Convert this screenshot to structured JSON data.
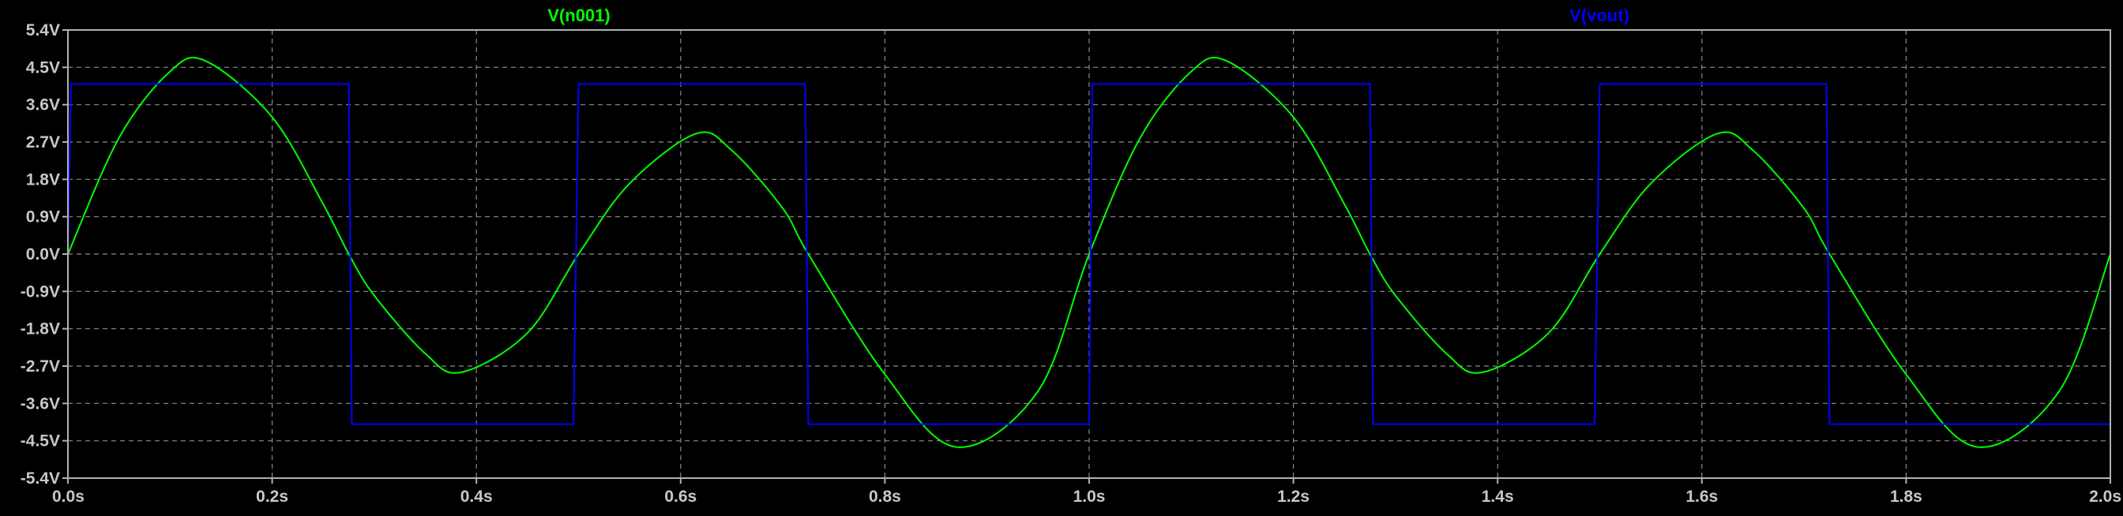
{
  "chart_data": {
    "type": "line",
    "x_unit": "s",
    "y_unit": "V",
    "xlim": [
      0,
      2
    ],
    "ylim": [
      -5.4,
      5.4
    ],
    "x_ticks": [
      0.0,
      0.2,
      0.4,
      0.6,
      0.8,
      1.0,
      1.2,
      1.4,
      1.6,
      1.8,
      2.0
    ],
    "y_ticks": [
      5.4,
      4.5,
      3.6,
      2.7,
      1.8,
      0.9,
      0.0,
      -0.9,
      -1.8,
      -2.7,
      -3.6,
      -4.5,
      -5.4
    ],
    "x_tick_labels": [
      "0.0s",
      "0.2s",
      "0.4s",
      "0.6s",
      "0.8s",
      "1.0s",
      "1.2s",
      "1.4s",
      "1.6s",
      "1.8s",
      "2.0s"
    ],
    "y_tick_labels": [
      "5.4V",
      "4.5V",
      "3.6V",
      "2.7V",
      "1.8V",
      "0.9V",
      "0.0V",
      "-0.9V",
      "-1.8V",
      "-2.7V",
      "-3.6V",
      "-4.5V",
      "-5.4V"
    ],
    "grid": true,
    "background": "#000000",
    "series": [
      {
        "name": "V(n001)",
        "color": "#00ff00",
        "x": [
          0.0,
          0.05,
          0.1,
          0.135,
          0.2,
          0.25,
          0.275,
          0.3,
          0.35,
          0.385,
          0.45,
          0.5,
          0.55,
          0.615,
          0.65,
          0.7,
          0.725,
          0.8,
          0.87,
          0.95,
          1.0,
          1.05,
          1.1,
          1.135,
          1.2,
          1.25,
          1.275,
          1.3,
          1.35,
          1.385,
          1.45,
          1.5,
          1.55,
          1.615,
          1.65,
          1.7,
          1.725,
          1.8,
          1.87,
          1.95,
          2.0
        ],
        "values": [
          0.0,
          2.8,
          4.4,
          4.65,
          3.3,
          1.2,
          0.0,
          -1.0,
          -2.4,
          -2.85,
          -1.9,
          0.0,
          1.7,
          2.9,
          2.5,
          1.1,
          0.0,
          -2.9,
          -4.65,
          -3.3,
          0.0,
          2.8,
          4.4,
          4.65,
          3.3,
          1.2,
          0.0,
          -1.0,
          -2.4,
          -2.85,
          -1.9,
          0.0,
          1.7,
          2.9,
          2.5,
          1.1,
          0.0,
          -2.9,
          -4.65,
          -3.3,
          0.0
        ]
      },
      {
        "name": "V(vout)",
        "color": "#0000ff",
        "step": true,
        "x": [
          0.0,
          0.003,
          0.275,
          0.278,
          0.495,
          0.5,
          0.722,
          0.725,
          1.0,
          1.003,
          1.275,
          1.278,
          1.495,
          1.5,
          1.722,
          1.725,
          2.0
        ],
        "values": [
          0.0,
          4.1,
          4.1,
          -4.1,
          -4.1,
          4.1,
          4.1,
          -4.1,
          -4.1,
          4.1,
          4.1,
          -4.1,
          -4.1,
          4.1,
          4.1,
          -4.1,
          -4.1
        ]
      }
    ]
  }
}
